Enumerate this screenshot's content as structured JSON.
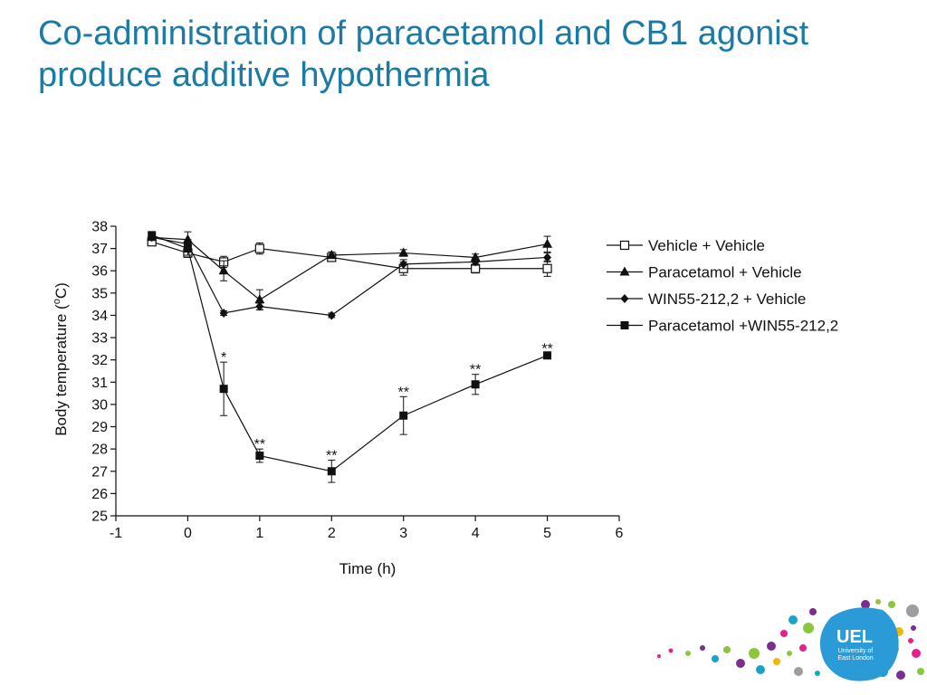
{
  "slide": {
    "title_line1": "Co-administration of paracetamol and CB1 agonist",
    "title_line2": "produce additive hypothermia"
  },
  "logo": {
    "badge_text": "UEL",
    "badge_sub1": "University of",
    "badge_sub2": "East London"
  },
  "colors": {
    "title": "#1a7ca6",
    "ink": "#111111",
    "logo_badge": "#2a9bd6"
  },
  "chart_data": {
    "type": "line",
    "xlabel": "Time (h)",
    "ylabel_prefix": "Body temperature (",
    "ylabel_sup": "o",
    "ylabel_suffix": "C)",
    "xlim": [
      -1,
      6
    ],
    "ylim": [
      25,
      38
    ],
    "xticks": [
      -1,
      0,
      1,
      2,
      3,
      4,
      5,
      6
    ],
    "yticks": [
      25,
      26,
      27,
      28,
      29,
      30,
      31,
      32,
      33,
      34,
      35,
      36,
      37,
      38
    ],
    "grid": false,
    "legend_position": "right",
    "series": [
      {
        "name": "Vehicle + Vehicle",
        "marker": "open-square",
        "x": [
          -0.5,
          0,
          0.5,
          1,
          2,
          3,
          4,
          5
        ],
        "y": [
          37.3,
          36.8,
          36.4,
          37.0,
          36.6,
          36.1,
          36.1,
          36.1
        ],
        "err": [
          0.15,
          0.2,
          0.25,
          0.25,
          0.15,
          0.3,
          0.2,
          0.35
        ]
      },
      {
        "name": "Paracetamol + Vehicle",
        "marker": "filled-triangle",
        "x": [
          -0.5,
          0,
          0.5,
          1,
          2,
          3,
          4,
          5
        ],
        "y": [
          37.5,
          37.4,
          36.0,
          34.7,
          36.7,
          36.8,
          36.6,
          37.2
        ],
        "err": [
          0.1,
          0.35,
          0.45,
          0.45,
          0.15,
          0.15,
          0.15,
          0.35
        ]
      },
      {
        "name": "WIN55-212,2 + Vehicle",
        "marker": "filled-diamond",
        "x": [
          -0.5,
          0,
          0.5,
          1,
          2,
          3,
          4,
          5
        ],
        "y": [
          37.5,
          37.2,
          34.1,
          34.4,
          34.0,
          36.3,
          36.4,
          36.6
        ],
        "err": [
          0.1,
          0.2,
          0.1,
          0.15,
          0.1,
          0.2,
          0.15,
          0.2
        ]
      },
      {
        "name": "Paracetamol +WIN55-212,2",
        "marker": "filled-square",
        "x": [
          -0.5,
          0,
          0.5,
          1,
          2,
          3,
          4,
          5
        ],
        "y": [
          37.6,
          37.0,
          30.7,
          27.7,
          27.0,
          29.5,
          30.9,
          32.2
        ],
        "err": [
          0.1,
          0.3,
          1.2,
          0.3,
          0.5,
          0.85,
          0.45,
          0.1
        ]
      }
    ],
    "annotations": [
      {
        "x": 0.5,
        "y": 31.9,
        "text": "*"
      },
      {
        "x": 1,
        "y": 28.0,
        "text": "**"
      },
      {
        "x": 2,
        "y": 27.5,
        "text": "**"
      },
      {
        "x": 3,
        "y": 30.35,
        "text": "**"
      },
      {
        "x": 4,
        "y": 31.35,
        "text": "**"
      },
      {
        "x": 5,
        "y": 32.3,
        "text": "**"
      }
    ]
  }
}
